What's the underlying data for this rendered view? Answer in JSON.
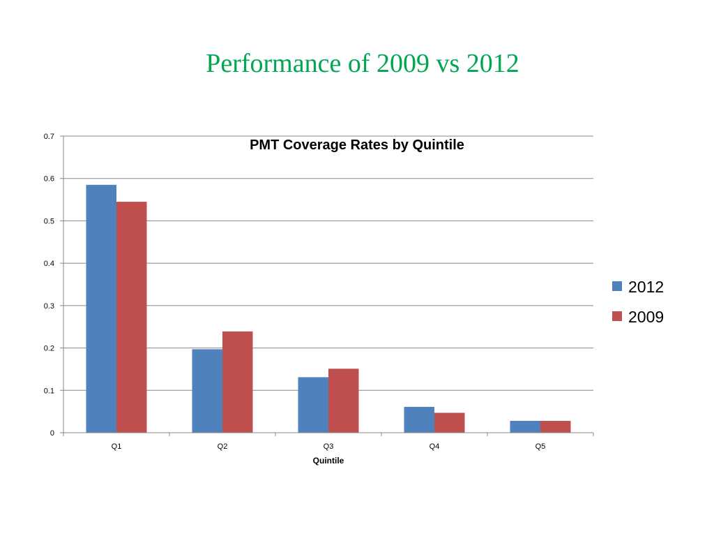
{
  "slide": {
    "title": "Performance of 2009 vs 2012",
    "title_color": "#00A651"
  },
  "chart_data": {
    "type": "bar",
    "title": "PMT Coverage Rates by Quintile",
    "xlabel": "Quintile",
    "ylabel": "",
    "categories": [
      "Q1",
      "Q2",
      "Q3",
      "Q4",
      "Q5"
    ],
    "series": [
      {
        "name": "2012",
        "color": "#4F81BD",
        "values": [
          0.585,
          0.197,
          0.131,
          0.061,
          0.028
        ]
      },
      {
        "name": "2009",
        "color": "#C0504D",
        "values": [
          0.545,
          0.239,
          0.151,
          0.047,
          0.028
        ]
      }
    ],
    "ylim": [
      0,
      0.7
    ],
    "yticks": [
      {
        "value": 0,
        "label": "0"
      },
      {
        "value": 0.1,
        "label": "0.1"
      },
      {
        "value": 0.2,
        "label": "0.2"
      },
      {
        "value": 0.3,
        "label": "0.3"
      },
      {
        "value": 0.4,
        "label": "0.4"
      },
      {
        "value": 0.5,
        "label": "0.5"
      },
      {
        "value": 0.6,
        "label": "0.6"
      },
      {
        "value": 0.7,
        "label": "0.7"
      }
    ],
    "grid": true,
    "legend_position": "right"
  }
}
